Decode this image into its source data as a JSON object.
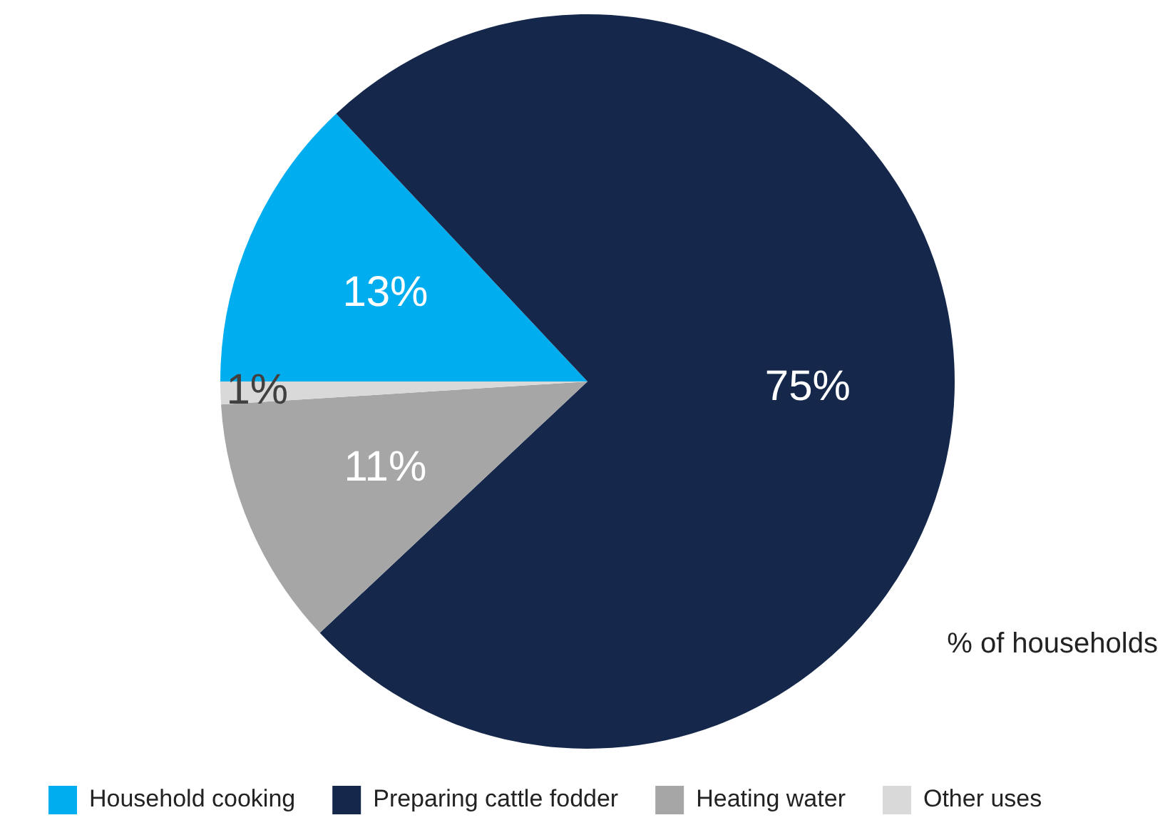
{
  "chart_data": {
    "type": "pie",
    "categories": [
      "Household cooking",
      "Preparing cattle fodder",
      "Heating water",
      "Other uses"
    ],
    "values": [
      13,
      75,
      11,
      1
    ],
    "colors": [
      "#00aeef",
      "#15284b",
      "#a6a6a6",
      "#d9d9d9"
    ],
    "value_labels": [
      "13%",
      "75%",
      "11%",
      "1%"
    ],
    "annotations": [
      "% of households"
    ],
    "legend": "bottom"
  }
}
